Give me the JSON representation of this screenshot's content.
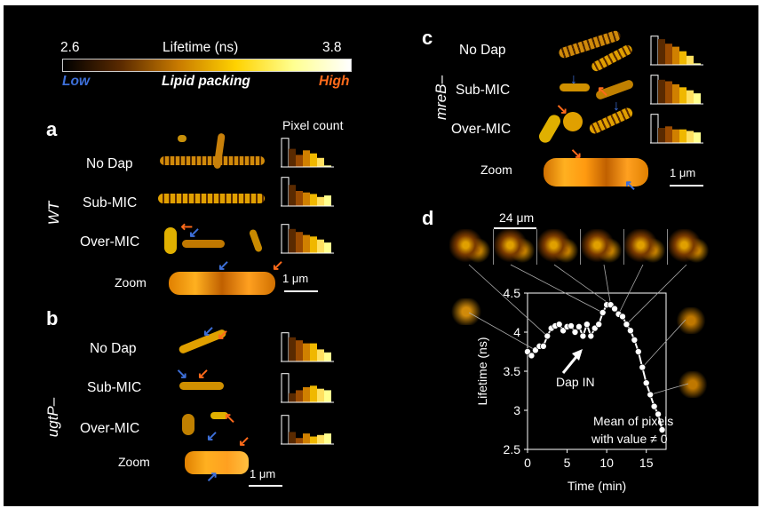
{
  "colorbar": {
    "min_label": "2.6",
    "max_label": "3.8",
    "title": "Lifetime (ns)",
    "low_label": "Low",
    "center_label": "Lipid packing",
    "high_label": "High",
    "gradient_colors": [
      "#000000",
      "#5a2a00",
      "#c87a00",
      "#ffd200",
      "#ffff90",
      "#ffffff"
    ]
  },
  "panel_a": {
    "letter": "a",
    "strain": "WT",
    "pixel_count_label": "Pixel count",
    "rows": [
      "No Dap",
      "Sub-MIC",
      "Over-MIC"
    ],
    "zoom_label": "Zoom",
    "scale_label": "1 μm"
  },
  "panel_b": {
    "letter": "b",
    "strain": "ugtP–",
    "rows": [
      "No Dap",
      "Sub-MIC",
      "Over-MIC"
    ],
    "zoom_label": "Zoom",
    "scale_label": "1 μm"
  },
  "panel_c": {
    "letter": "c",
    "strain": "mreB–",
    "rows": [
      "No Dap",
      "Sub-MIC",
      "Over-MIC"
    ],
    "zoom_label": "Zoom",
    "scale_label": "1 μm"
  },
  "panel_d": {
    "letter": "d",
    "scale_label": "24 μm",
    "annotation": "Dap IN",
    "note_line1": "Mean of pixels",
    "note_line2": "with value ≠ 0"
  },
  "histograms": {
    "bar_colors": [
      "#000000",
      "#5a2a00",
      "#9a4a00",
      "#d08000",
      "#f0b800",
      "#ffe060",
      "#ffff90"
    ],
    "a_nodap": [
      0.95,
      0.6,
      0.4,
      0.55,
      0.45,
      0.3,
      0.05
    ],
    "a_submic": [
      0.95,
      0.7,
      0.5,
      0.45,
      0.4,
      0.3,
      0.35
    ],
    "a_overmic": [
      0.95,
      0.8,
      0.7,
      0.6,
      0.55,
      0.45,
      0.35
    ],
    "b_nodap": [
      0.95,
      0.8,
      0.7,
      0.6,
      0.6,
      0.4,
      0.3
    ],
    "b_submic": [
      0.95,
      0.3,
      0.4,
      0.5,
      0.55,
      0.45,
      0.4
    ],
    "b_overmic": [
      0.95,
      0.4,
      0.2,
      0.35,
      0.25,
      0.3,
      0.35
    ],
    "c_nodap": [
      0.95,
      0.85,
      0.7,
      0.6,
      0.45,
      0.3,
      0.05
    ],
    "c_submic": [
      0.95,
      0.8,
      0.75,
      0.65,
      0.55,
      0.45,
      0.35
    ],
    "c_overmic": [
      0.95,
      0.5,
      0.55,
      0.45,
      0.45,
      0.4,
      0.35
    ]
  },
  "chart_data": {
    "type": "line",
    "xlabel": "Time (min)",
    "ylabel": "Lifetime (ns)",
    "xlim": [
      0,
      17.5
    ],
    "ylim": [
      2.5,
      4.5
    ],
    "xticks": [
      0,
      5,
      10,
      15
    ],
    "yticks": [
      2.5,
      3,
      3.5,
      4,
      4.5
    ],
    "x": [
      0,
      0.5,
      1,
      1.5,
      2,
      2.5,
      3,
      3.5,
      4,
      4.5,
      5,
      5.5,
      6,
      6.5,
      7,
      7.5,
      8,
      8.5,
      9,
      9.5,
      10,
      10.5,
      11,
      11.5,
      12,
      12.5,
      13,
      13.5,
      14,
      14.5,
      15,
      15.5,
      16,
      16.5,
      17
    ],
    "y": [
      3.75,
      3.7,
      3.77,
      3.82,
      3.82,
      3.95,
      4.05,
      4.08,
      4.1,
      4.02,
      4.07,
      4.08,
      4.0,
      4.07,
      3.95,
      4.1,
      3.95,
      4.05,
      4.1,
      4.25,
      4.35,
      4.35,
      4.3,
      4.23,
      4.2,
      4.1,
      4.02,
      3.9,
      3.75,
      3.55,
      3.35,
      3.2,
      3.05,
      2.95,
      2.75
    ]
  }
}
